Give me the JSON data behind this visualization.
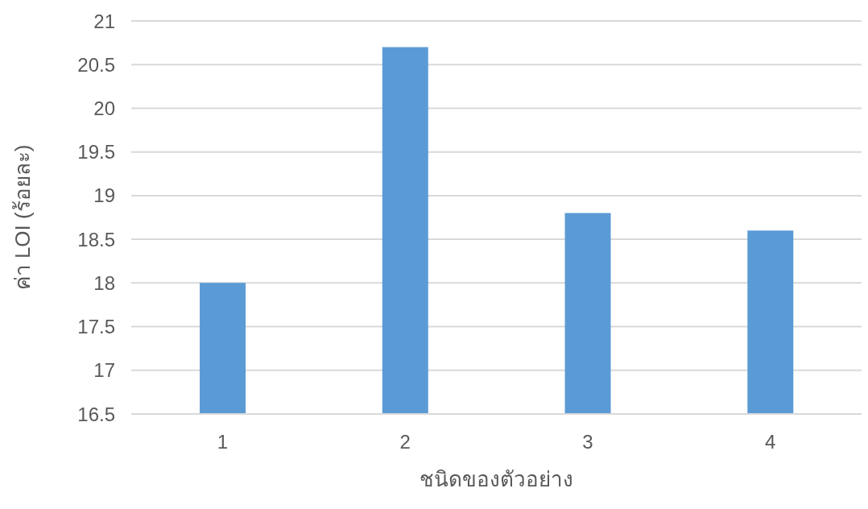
{
  "chart_data": {
    "type": "bar",
    "xlabel": "ชนิดของตัวอย่าง",
    "ylabel": "ค่า LOI (ร้อยละ)",
    "categories": [
      "1",
      "2",
      "3",
      "4"
    ],
    "values": [
      18,
      20.7,
      18.8,
      18.6
    ],
    "color": "#5b9bd5",
    "ylim": [
      16.5,
      21
    ],
    "yticks": [
      16.5,
      17,
      17.5,
      18,
      18.5,
      19,
      19.5,
      20,
      20.5,
      21
    ],
    "grid": "y"
  }
}
